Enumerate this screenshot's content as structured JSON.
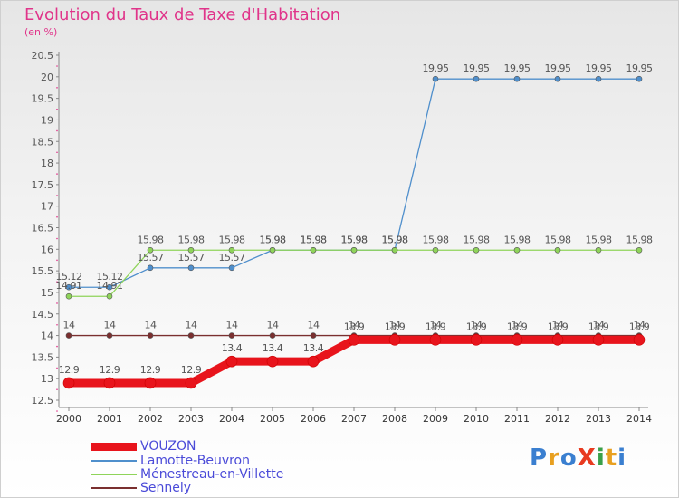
{
  "title": "Evolution du Taux de Taxe d'Habitation",
  "subtitle": "(en %)",
  "logo": {
    "text": "ProXiti",
    "letter_colors": [
      "#3a7fd0",
      "#e8a020",
      "#3a7fd0",
      "#e83a20",
      "#3aa04a",
      "#e8a020",
      "#3a7fd0"
    ]
  },
  "chart_data": {
    "type": "line",
    "title": "Evolution du Taux de Taxe d'Habitation",
    "ylabel": "(en %)",
    "x": [
      "2000",
      "2001",
      "2002",
      "2003",
      "2004",
      "2005",
      "2006",
      "2007",
      "2008",
      "2009",
      "2010",
      "2011",
      "2012",
      "2013",
      "2014"
    ],
    "ylim": [
      12.5,
      20.5
    ],
    "yticks": [
      "12.5",
      "13",
      "13.5",
      "14",
      "14.5",
      "15",
      "15.5",
      "16",
      "16.5",
      "17",
      "17.5",
      "18",
      "18.5",
      "19",
      "19.5",
      "20",
      "20.5"
    ],
    "grid": false,
    "legend_position": "bottom-left",
    "series": [
      {
        "name": "VOUZON",
        "color": "#e8141c",
        "thick": true,
        "values": [
          12.9,
          12.9,
          12.9,
          12.9,
          13.4,
          13.4,
          13.4,
          13.9,
          13.9,
          13.9,
          13.9,
          13.9,
          13.9,
          13.9,
          13.9
        ],
        "labels": [
          "12.9",
          "12.9",
          "12.9",
          "12.9",
          "13.4",
          "13.4",
          "13.4",
          "13.9",
          "13.9",
          "13.9",
          "13.9",
          "13.9",
          "13.9",
          "13.9",
          "13.9"
        ]
      },
      {
        "name": "Lamotte-Beuvron",
        "color": "#4f8fcc",
        "thick": false,
        "values": [
          15.12,
          15.12,
          15.57,
          15.57,
          15.57,
          15.98,
          15.98,
          15.98,
          15.98,
          19.95,
          19.95,
          19.95,
          19.95,
          19.95,
          19.95
        ],
        "labels": [
          "15.12",
          "15.12",
          "15.57",
          "15.57",
          "15.57",
          "15.98",
          "15.98",
          "15.98",
          "15.98",
          "19.95",
          "19.95",
          "19.95",
          "19.95",
          "19.95",
          "19.95"
        ]
      },
      {
        "name": "Ménestreau-en-Villette",
        "color": "#8fd45a",
        "thick": false,
        "values": [
          14.91,
          14.91,
          15.98,
          15.98,
          15.98,
          15.98,
          15.98,
          15.98,
          15.98,
          15.98,
          15.98,
          15.98,
          15.98,
          15.98,
          15.98
        ],
        "labels": [
          "14.91",
          "14.91",
          "15.98",
          "15.98",
          "15.98",
          "15.98",
          "15.98",
          "15.98",
          "15.98",
          "15.98",
          "15.98",
          "15.98",
          "15.98",
          "15.98",
          "15.98"
        ]
      },
      {
        "name": "Sennely",
        "color": "#7a2f2f",
        "thick": false,
        "values": [
          14,
          14,
          14,
          14,
          14,
          14,
          14,
          14,
          14,
          14,
          14,
          14,
          14,
          14,
          14
        ],
        "labels": [
          "14",
          "14",
          "14",
          "14",
          "14",
          "14",
          "14",
          "14",
          "14",
          "14",
          "14",
          "14",
          "14",
          "14",
          "14"
        ]
      }
    ]
  }
}
